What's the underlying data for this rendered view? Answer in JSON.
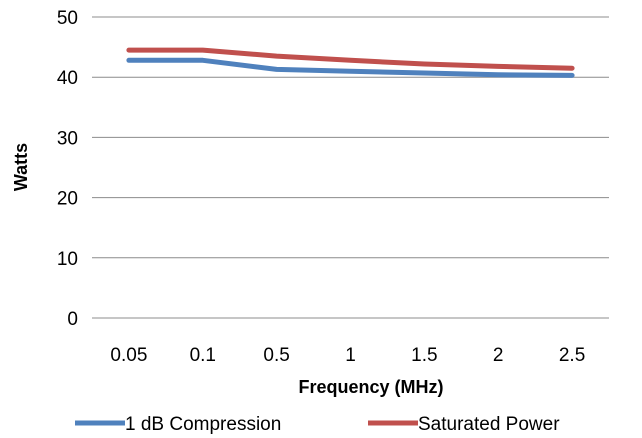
{
  "chart_data": {
    "type": "line",
    "title": "",
    "xlabel": "Frequency (MHz)",
    "ylabel": "Watts",
    "categories": [
      "0.05",
      "0.1",
      "0.5",
      "1",
      "1.5",
      "2",
      "2.5"
    ],
    "yticks": [
      "0",
      "10",
      "20",
      "30",
      "40",
      "50"
    ],
    "ylim": [
      0,
      50
    ],
    "grid": "horizontal",
    "legend_position": "bottom",
    "series": [
      {
        "name": "1 dB Compression",
        "color": "#4F81BD",
        "values": [
          42.8,
          42.8,
          41.3,
          41.0,
          40.7,
          40.4,
          40.3
        ]
      },
      {
        "name": "Saturated Power",
        "color": "#C0504D",
        "values": [
          44.5,
          44.5,
          43.5,
          42.8,
          42.2,
          41.8,
          41.5
        ]
      }
    ]
  }
}
